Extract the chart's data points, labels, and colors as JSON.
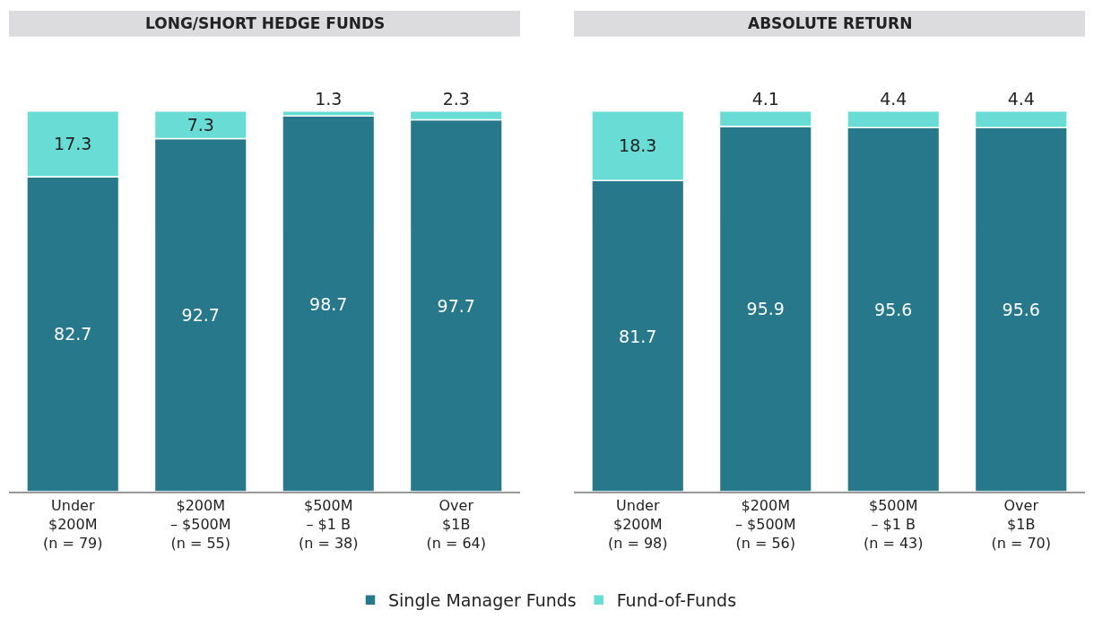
{
  "chart_data": [
    {
      "type": "bar",
      "title": "LONG/SHORT HEDGE FUNDS",
      "stacked": true,
      "data_labels": true,
      "legend": "bottom",
      "categories": [
        "Under\n$200M\n(n = 79)",
        "$200M\n– $500M\n(n = 55)",
        "$500M\n– $1 B\n(n = 38)",
        "Over\n$1B\n(n = 64)"
      ],
      "series": [
        {
          "name": "Single Manager Funds",
          "color": "#27788a",
          "values": [
            82.7,
            92.7,
            98.7,
            97.7
          ]
        },
        {
          "name": "Fund-of-Funds",
          "color": "#69ddd5",
          "values": [
            17.3,
            7.3,
            1.3,
            2.3
          ]
        }
      ]
    },
    {
      "type": "bar",
      "title": "ABSOLUTE RETURN",
      "stacked": true,
      "data_labels": true,
      "categories": [
        "Under\n$200M\n(n = 98)",
        "$200M\n– $500M\n(n = 56)",
        "$500M\n– $1 B\n(n = 43)",
        "Over\n$1B\n(n = 70)"
      ],
      "series": [
        {
          "name": "Single Manager Funds",
          "color": "#27788a",
          "values": [
            81.7,
            95.9,
            95.6,
            95.6
          ]
        },
        {
          "name": "Fund-of-Funds",
          "color": "#69ddd5",
          "values": [
            18.3,
            4.1,
            4.4,
            4.4
          ]
        }
      ]
    }
  ]
}
